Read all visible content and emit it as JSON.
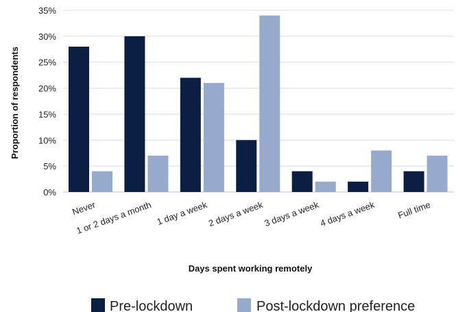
{
  "chart_data": {
    "type": "bar",
    "title": "",
    "xlabel": "Days spent working remotely",
    "ylabel": "Proportion of  respondents",
    "ylim": [
      0,
      35
    ],
    "y_ticks": [
      "0%",
      "5%",
      "10%",
      "15%",
      "20%",
      "25%",
      "30%",
      "35%"
    ],
    "y_tick_values": [
      0,
      5,
      10,
      15,
      20,
      25,
      30,
      35
    ],
    "grid": true,
    "legend_position": "bottom",
    "categories": [
      "Never",
      "1 or 2 days a month",
      "1 day a week",
      "2 days a week",
      "3 days a week",
      "4 days a week",
      "Full time"
    ],
    "series": [
      {
        "name": "Pre-lockdown",
        "color": "#0b1f45",
        "values": [
          28,
          30,
          22,
          10,
          4,
          2,
          4
        ]
      },
      {
        "name": "Post-lockdown preference",
        "color": "#95aacd",
        "values": [
          4,
          7,
          21,
          34,
          2,
          8,
          7
        ]
      }
    ]
  }
}
